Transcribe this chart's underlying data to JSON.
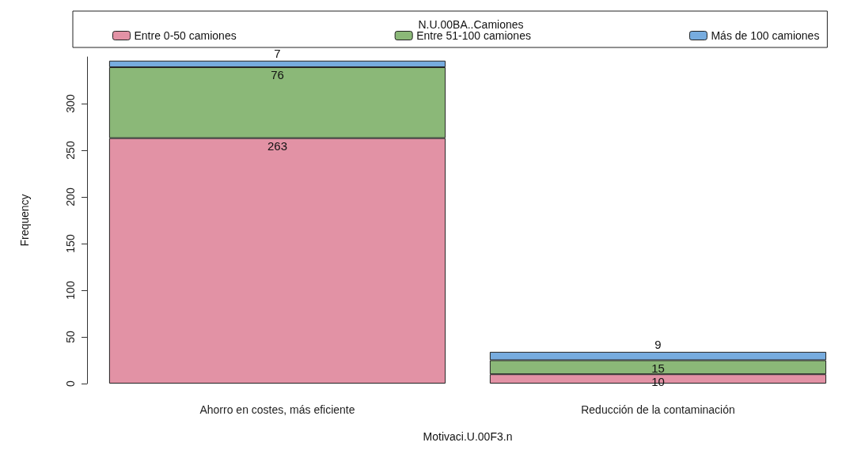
{
  "chart_data": {
    "type": "bar",
    "stacked": true,
    "xlabel": "Motivaci.U.00F3.n",
    "ylabel": "Frequency",
    "legend_title": "N.U.00BA..Camiones",
    "categories": [
      "Ahorro en costes, más eficiente",
      "Reducción de la contaminación"
    ],
    "series": [
      {
        "name": "Entre 0-50 camiones",
        "color": "#e292a5",
        "values": [
          263,
          10
        ]
      },
      {
        "name": "Entre 51-100 camiones",
        "color": "#8bb878",
        "values": [
          76,
          15
        ]
      },
      {
        "name": "Más de 100 camiones",
        "color": "#77acdf",
        "values": [
          7,
          9
        ]
      }
    ],
    "ylim": [
      0,
      350
    ],
    "yticks": [
      0,
      50,
      100,
      150,
      200,
      250,
      300
    ],
    "grid": false,
    "legend": "top",
    "data_labels": true
  }
}
